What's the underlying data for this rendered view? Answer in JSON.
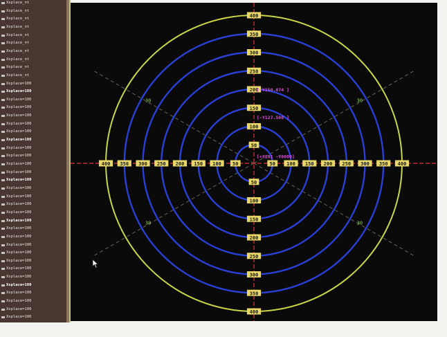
{
  "log_panel": {
    "rows": [
      "Xsplace_nt",
      "Xsplace_nt",
      "Xsplace_nt",
      "Xsplace_nt",
      "Xsplace_nt",
      "Xsplace_nt",
      "Xsplace_nt",
      "Xsplace_nt",
      "Xsplace_nt",
      "Xsplace_nt",
      "Xsplace=100",
      "Xsplace=100",
      "Xsplace=100",
      "Xsplace=100",
      "Xsplace=100",
      "Xsplace=100",
      "Xsplace=100",
      "Xsplace=100",
      "Xsplace=100",
      "Xsplace=100",
      "Xsplace=100",
      "Xsplace=100",
      "Xsplace=100",
      "Xsplace=100",
      "Xsplace=100",
      "Xsplace=100",
      "Xsplace=100",
      "Xsplace=100",
      "Xsplace=100",
      "Xsplace=100",
      "Xsplace=100",
      "Xsplace=100",
      "Xsplace=100",
      "Xsplace=100",
      "Xsplace=100",
      "Xsplace=100",
      "Xsplace=100",
      "Xsplace=100",
      "Xsplace=100",
      "Xsplace=100"
    ],
    "bold_rows": [
      11,
      17,
      22,
      27,
      35
    ]
  },
  "radar": {
    "max_range": 400,
    "ring_step": 50,
    "axis_labels_positive": [
      "50",
      "100",
      "150",
      "200",
      "250",
      "300",
      "350",
      "400"
    ],
    "axis_labels_negative": [
      "50",
      "100",
      "150",
      "200",
      "250",
      "300",
      "350",
      "400"
    ],
    "diagonal_labels": [
      "30",
      "30",
      "30",
      "30"
    ],
    "markers": [
      {
        "text": "[-Y150.074 ]",
        "range": 200
      },
      {
        "text": "[-Y127.500 ]",
        "range": 125
      },
      {
        "text": "[+X101 -Y0000]",
        "range": 20
      }
    ],
    "colors": {
      "outer_ring": "#c9d648",
      "inner_ring": "#2a3fd4",
      "axis": "#e0353a",
      "label_bg": "#e8d86a",
      "label_text": "#1a1a10",
      "diagonal": "#8a8870",
      "marker": "#e84ae0"
    }
  }
}
